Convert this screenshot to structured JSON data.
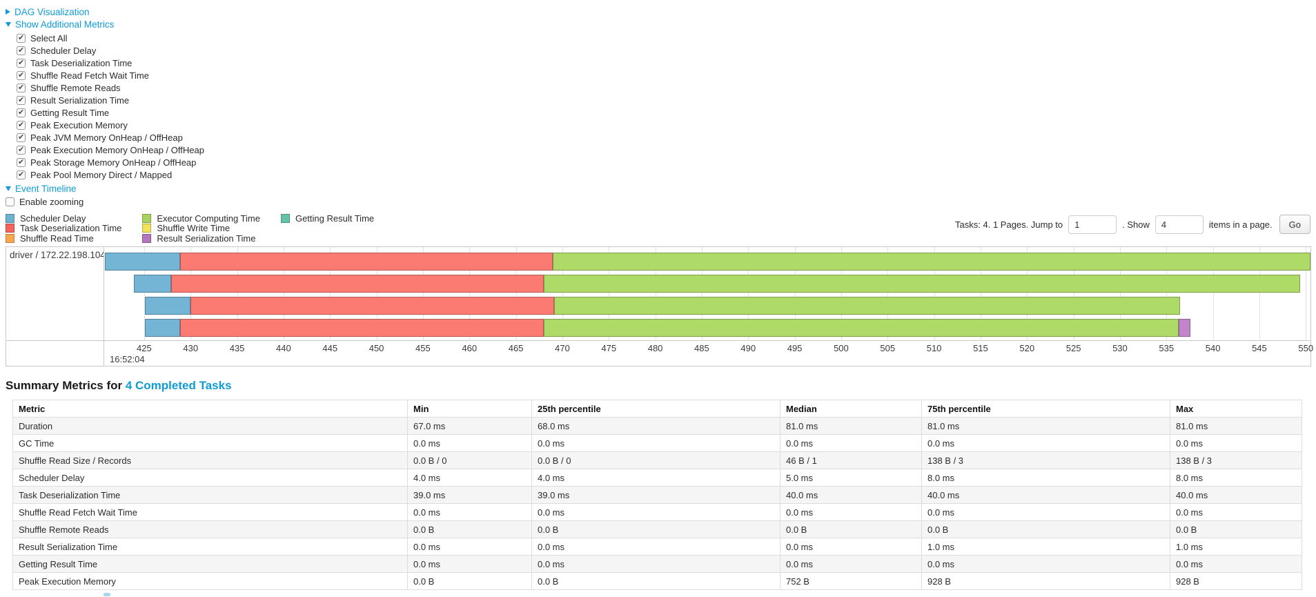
{
  "toggles": {
    "dag_visualization": "DAG Visualization",
    "show_additional_metrics": "Show Additional Metrics",
    "event_timeline": "Event Timeline"
  },
  "metrics_checkboxes": [
    {
      "label": "Select All",
      "checked": true
    },
    {
      "label": "Scheduler Delay",
      "checked": true
    },
    {
      "label": "Task Deserialization Time",
      "checked": true
    },
    {
      "label": "Shuffle Read Fetch Wait Time",
      "checked": true
    },
    {
      "label": "Shuffle Remote Reads",
      "checked": true
    },
    {
      "label": "Result Serialization Time",
      "checked": true
    },
    {
      "label": "Getting Result Time",
      "checked": true
    },
    {
      "label": "Peak Execution Memory",
      "checked": true
    },
    {
      "label": "Peak JVM Memory OnHeap / OffHeap",
      "checked": true
    },
    {
      "label": "Peak Execution Memory OnHeap / OffHeap",
      "checked": true
    },
    {
      "label": "Peak Storage Memory OnHeap / OffHeap",
      "checked": true
    },
    {
      "label": "Peak Pool Memory Direct / Mapped",
      "checked": true
    }
  ],
  "enable_zooming": {
    "label": "Enable zooming",
    "checked": false
  },
  "legend": {
    "items": [
      {
        "label": "Scheduler Delay",
        "color": "#6EB2D3",
        "col": 1
      },
      {
        "label": "Task Deserialization Time",
        "color": "#F3645C",
        "col": 1
      },
      {
        "label": "Shuffle Read Time",
        "color": "#F8A74F",
        "col": 1
      },
      {
        "label": "Executor Computing Time",
        "color": "#A7D35E",
        "col": 2
      },
      {
        "label": "Shuffle Write Time",
        "color": "#F2E35B",
        "col": 2
      },
      {
        "label": "Result Serialization Time",
        "color": "#B277BD",
        "col": 2
      },
      {
        "label": "Getting Result Time",
        "color": "#64C2A6",
        "col": 3
      }
    ]
  },
  "pagination": {
    "summary": "Tasks: 4. 1 Pages. Jump to",
    "jump_value": "1",
    "show_label": ". Show",
    "show_value": "4",
    "suffix": "items in a page.",
    "go_label": "Go"
  },
  "chart_data": {
    "type": "timeline",
    "group_label": "driver / 172.22.198.104",
    "x_start_time_label": "16:52:04",
    "x_ticks": [
      425,
      430,
      435,
      440,
      445,
      450,
      455,
      460,
      465,
      470,
      475,
      480,
      485,
      490,
      495,
      500,
      505,
      510,
      515,
      520,
      525,
      530,
      535,
      540,
      545,
      550
    ],
    "xlim": [
      420.7,
      550.5
    ],
    "series_colors": {
      "scheduler_delay": "#74B5D6",
      "task_deserialization": "#FB7A71",
      "executor_computing": "#AEDA68",
      "result_serialization": "#C285C9"
    },
    "tasks": [
      {
        "segments": [
          {
            "type": "scheduler_delay",
            "start": 420.8,
            "end": 428.9
          },
          {
            "type": "task_deserialization",
            "start": 428.9,
            "end": 469.0
          },
          {
            "type": "executor_computing",
            "start": 469.0,
            "end": 550.5
          }
        ]
      },
      {
        "segments": [
          {
            "type": "scheduler_delay",
            "start": 423.9,
            "end": 427.9
          },
          {
            "type": "task_deserialization",
            "start": 427.9,
            "end": 468.0
          },
          {
            "type": "executor_computing",
            "start": 468.0,
            "end": 549.4
          }
        ]
      },
      {
        "segments": [
          {
            "type": "scheduler_delay",
            "start": 425.1,
            "end": 430.0
          },
          {
            "type": "task_deserialization",
            "start": 430.0,
            "end": 469.1
          },
          {
            "type": "executor_computing",
            "start": 469.1,
            "end": 536.5
          }
        ]
      },
      {
        "segments": [
          {
            "type": "scheduler_delay",
            "start": 425.1,
            "end": 428.9
          },
          {
            "type": "task_deserialization",
            "start": 428.9,
            "end": 468.0
          },
          {
            "type": "executor_computing",
            "start": 468.0,
            "end": 536.3
          },
          {
            "type": "result_serialization",
            "start": 536.3,
            "end": 537.6
          }
        ]
      }
    ]
  },
  "summary": {
    "heading_prefix": "Summary Metrics for ",
    "heading_link": "4 Completed Tasks",
    "table": {
      "headers": [
        "Metric",
        "Min",
        "25th percentile",
        "Median",
        "75th percentile",
        "Max"
      ],
      "rows": [
        [
          "Duration",
          "67.0 ms",
          "68.0 ms",
          "81.0 ms",
          "81.0 ms",
          "81.0 ms"
        ],
        [
          "GC Time",
          "0.0 ms",
          "0.0 ms",
          "0.0 ms",
          "0.0 ms",
          "0.0 ms"
        ],
        [
          "Shuffle Read Size / Records",
          "0.0 B / 0",
          "0.0 B / 0",
          "46 B / 1",
          "138 B / 3",
          "138 B / 3"
        ],
        [
          "Scheduler Delay",
          "4.0 ms",
          "4.0 ms",
          "5.0 ms",
          "8.0 ms",
          "8.0 ms"
        ],
        [
          "Task Deserialization Time",
          "39.0 ms",
          "39.0 ms",
          "40.0 ms",
          "40.0 ms",
          "40.0 ms"
        ],
        [
          "Shuffle Read Fetch Wait Time",
          "0.0 ms",
          "0.0 ms",
          "0.0 ms",
          "0.0 ms",
          "0.0 ms"
        ],
        [
          "Shuffle Remote Reads",
          "0.0 B",
          "0.0 B",
          "0.0 B",
          "0.0 B",
          "0.0 B"
        ],
        [
          "Result Serialization Time",
          "0.0 ms",
          "0.0 ms",
          "0.0 ms",
          "1.0 ms",
          "1.0 ms"
        ],
        [
          "Getting Result Time",
          "0.0 ms",
          "0.0 ms",
          "0.0 ms",
          "0.0 ms",
          "0.0 ms"
        ],
        [
          "Peak Execution Memory",
          "0.0 B",
          "0.0 B",
          "752 B",
          "928 B",
          "928 B"
        ]
      ]
    }
  },
  "colors": {
    "link": "#0f9cd6"
  }
}
